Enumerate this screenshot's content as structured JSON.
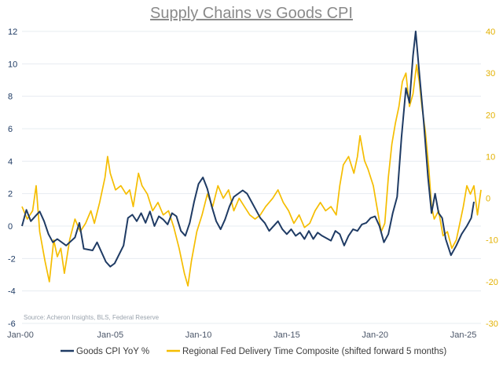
{
  "chart_data": {
    "type": "line",
    "title": "Supply Chains vs Goods CPI",
    "source": "Source: Acheron Insights, BLS, Federal Reserve",
    "x_ticks": [
      "Jan-00",
      "Jan-05",
      "Jan-10",
      "Jan-15",
      "Jan-20",
      "Jan-25"
    ],
    "x_range": [
      2000.0,
      2026.0
    ],
    "y_left": {
      "min": -6,
      "max": 12,
      "ticks": [
        -6,
        -4,
        -2,
        0,
        2,
        4,
        6,
        8,
        10,
        12
      ]
    },
    "y_right": {
      "min": -30,
      "max": 40,
      "ticks": [
        -30,
        -20,
        -10,
        0,
        10,
        20,
        30,
        40
      ]
    },
    "series": [
      {
        "name": "Goods CPI YoY %",
        "axis": "left",
        "color": "#1f3b64",
        "points": [
          [
            2000.0,
            0.0
          ],
          [
            2000.25,
            1.0
          ],
          [
            2000.5,
            0.3
          ],
          [
            2000.75,
            0.6
          ],
          [
            2001.0,
            0.9
          ],
          [
            2001.25,
            0.3
          ],
          [
            2001.5,
            -0.5
          ],
          [
            2001.75,
            -1.0
          ],
          [
            2002.0,
            -0.8
          ],
          [
            2002.5,
            -1.2
          ],
          [
            2003.0,
            -0.7
          ],
          [
            2003.25,
            0.2
          ],
          [
            2003.5,
            -1.4
          ],
          [
            2004.0,
            -1.5
          ],
          [
            2004.25,
            -1.0
          ],
          [
            2004.75,
            -2.2
          ],
          [
            2005.0,
            -2.5
          ],
          [
            2005.25,
            -2.3
          ],
          [
            2005.75,
            -1.2
          ],
          [
            2006.0,
            0.5
          ],
          [
            2006.25,
            0.7
          ],
          [
            2006.5,
            0.3
          ],
          [
            2006.75,
            0.8
          ],
          [
            2007.0,
            0.2
          ],
          [
            2007.25,
            0.9
          ],
          [
            2007.5,
            0.0
          ],
          [
            2007.75,
            0.6
          ],
          [
            2008.0,
            0.4
          ],
          [
            2008.25,
            0.1
          ],
          [
            2008.5,
            0.8
          ],
          [
            2008.75,
            0.6
          ],
          [
            2009.0,
            -0.3
          ],
          [
            2009.25,
            -0.6
          ],
          [
            2009.5,
            0.2
          ],
          [
            2009.75,
            1.5
          ],
          [
            2010.0,
            2.6
          ],
          [
            2010.25,
            3.0
          ],
          [
            2010.5,
            2.3
          ],
          [
            2010.75,
            1.2
          ],
          [
            2011.0,
            0.3
          ],
          [
            2011.25,
            -0.2
          ],
          [
            2011.5,
            0.4
          ],
          [
            2011.75,
            1.2
          ],
          [
            2012.0,
            1.8
          ],
          [
            2012.5,
            2.2
          ],
          [
            2012.75,
            2.0
          ],
          [
            2013.0,
            1.5
          ],
          [
            2013.25,
            1.0
          ],
          [
            2013.5,
            0.5
          ],
          [
            2013.75,
            0.2
          ],
          [
            2014.0,
            -0.3
          ],
          [
            2014.5,
            0.3
          ],
          [
            2014.75,
            -0.2
          ],
          [
            2015.0,
            -0.5
          ],
          [
            2015.25,
            -0.2
          ],
          [
            2015.5,
            -0.6
          ],
          [
            2015.75,
            -0.4
          ],
          [
            2016.0,
            -0.8
          ],
          [
            2016.25,
            -0.3
          ],
          [
            2016.5,
            -0.8
          ],
          [
            2016.75,
            -0.4
          ],
          [
            2017.0,
            -0.6
          ],
          [
            2017.5,
            -0.9
          ],
          [
            2017.75,
            -0.3
          ],
          [
            2018.0,
            -0.5
          ],
          [
            2018.25,
            -1.2
          ],
          [
            2018.5,
            -0.6
          ],
          [
            2018.75,
            -0.2
          ],
          [
            2019.0,
            -0.3
          ],
          [
            2019.25,
            0.1
          ],
          [
            2019.5,
            0.2
          ],
          [
            2019.75,
            0.5
          ],
          [
            2020.0,
            0.6
          ],
          [
            2020.25,
            0.0
          ],
          [
            2020.5,
            -1.0
          ],
          [
            2020.75,
            -0.5
          ],
          [
            2021.0,
            0.8
          ],
          [
            2021.25,
            1.8
          ],
          [
            2021.5,
            5.5
          ],
          [
            2021.75,
            8.5
          ],
          [
            2021.95,
            7.6
          ],
          [
            2022.15,
            10.5
          ],
          [
            2022.3,
            12.0
          ],
          [
            2022.5,
            9.5
          ],
          [
            2022.75,
            6.5
          ],
          [
            2023.0,
            3.0
          ],
          [
            2023.2,
            0.8
          ],
          [
            2023.4,
            2.0
          ],
          [
            2023.6,
            0.8
          ],
          [
            2023.8,
            0.5
          ],
          [
            2024.0,
            -0.8
          ],
          [
            2024.3,
            -1.8
          ],
          [
            2024.6,
            -1.2
          ],
          [
            2024.9,
            -0.5
          ],
          [
            2025.2,
            0.0
          ],
          [
            2025.45,
            0.5
          ],
          [
            2025.6,
            1.5
          ]
        ]
      },
      {
        "name": "Regional Fed Delivery Time Composite (shifted forward 5 months)",
        "axis": "right",
        "color": "#f5bd00",
        "points": [
          [
            2000.0,
            -2.0
          ],
          [
            2000.3,
            -5.0
          ],
          [
            2000.6,
            -3.0
          ],
          [
            2000.8,
            3.0
          ],
          [
            2001.0,
            -8.0
          ],
          [
            2001.3,
            -15.0
          ],
          [
            2001.55,
            -20.0
          ],
          [
            2001.8,
            -10.0
          ],
          [
            2002.0,
            -14.0
          ],
          [
            2002.2,
            -12.0
          ],
          [
            2002.4,
            -18.0
          ],
          [
            2002.7,
            -10.0
          ],
          [
            2003.0,
            -5.0
          ],
          [
            2003.3,
            -8.0
          ],
          [
            2003.6,
            -6.0
          ],
          [
            2003.9,
            -3.0
          ],
          [
            2004.1,
            -6.0
          ],
          [
            2004.4,
            -1.0
          ],
          [
            2004.7,
            5.0
          ],
          [
            2004.85,
            10.0
          ],
          [
            2005.0,
            6.0
          ],
          [
            2005.3,
            2.0
          ],
          [
            2005.6,
            3.0
          ],
          [
            2005.9,
            1.0
          ],
          [
            2006.1,
            2.0
          ],
          [
            2006.3,
            -2.0
          ],
          [
            2006.6,
            6.0
          ],
          [
            2006.8,
            3.0
          ],
          [
            2007.1,
            1.0
          ],
          [
            2007.4,
            -3.0
          ],
          [
            2007.7,
            -1.0
          ],
          [
            2008.0,
            -4.0
          ],
          [
            2008.3,
            -3.0
          ],
          [
            2008.6,
            -7.0
          ],
          [
            2008.9,
            -12.0
          ],
          [
            2009.2,
            -18.0
          ],
          [
            2009.4,
            -21.0
          ],
          [
            2009.6,
            -15.0
          ],
          [
            2009.9,
            -8.0
          ],
          [
            2010.2,
            -4.0
          ],
          [
            2010.5,
            1.0
          ],
          [
            2010.8,
            -2.0
          ],
          [
            2011.1,
            3.0
          ],
          [
            2011.4,
            0.0
          ],
          [
            2011.7,
            2.0
          ],
          [
            2012.0,
            -3.0
          ],
          [
            2012.3,
            0.0
          ],
          [
            2012.6,
            -2.0
          ],
          [
            2012.9,
            -4.0
          ],
          [
            2013.2,
            -5.0
          ],
          [
            2013.5,
            -4.0
          ],
          [
            2013.8,
            -2.0
          ],
          [
            2014.2,
            0.0
          ],
          [
            2014.5,
            2.0
          ],
          [
            2014.8,
            -1.0
          ],
          [
            2015.1,
            -3.0
          ],
          [
            2015.4,
            -6.0
          ],
          [
            2015.7,
            -4.0
          ],
          [
            2016.0,
            -7.0
          ],
          [
            2016.3,
            -6.0
          ],
          [
            2016.6,
            -3.0
          ],
          [
            2016.9,
            -1.0
          ],
          [
            2017.2,
            -3.0
          ],
          [
            2017.5,
            -2.0
          ],
          [
            2017.8,
            -4.0
          ],
          [
            2018.0,
            3.0
          ],
          [
            2018.2,
            8.0
          ],
          [
            2018.5,
            10.0
          ],
          [
            2018.8,
            6.0
          ],
          [
            2019.0,
            10.0
          ],
          [
            2019.15,
            15.0
          ],
          [
            2019.4,
            9.0
          ],
          [
            2019.6,
            7.0
          ],
          [
            2019.9,
            3.0
          ],
          [
            2020.1,
            -2.0
          ],
          [
            2020.35,
            -8.0
          ],
          [
            2020.55,
            -6.0
          ],
          [
            2020.75,
            5.0
          ],
          [
            2020.95,
            13.0
          ],
          [
            2021.15,
            18.0
          ],
          [
            2021.35,
            22.0
          ],
          [
            2021.55,
            28.0
          ],
          [
            2021.75,
            30.0
          ],
          [
            2021.95,
            22.0
          ],
          [
            2022.15,
            25.0
          ],
          [
            2022.35,
            32.0
          ],
          [
            2022.5,
            28.0
          ],
          [
            2022.65,
            22.0
          ],
          [
            2022.85,
            16.0
          ],
          [
            2023.05,
            7.0
          ],
          [
            2023.2,
            -2.0
          ],
          [
            2023.35,
            -5.0
          ],
          [
            2023.6,
            -3.0
          ],
          [
            2023.85,
            -9.0
          ],
          [
            2024.1,
            -8.0
          ],
          [
            2024.35,
            -12.0
          ],
          [
            2024.6,
            -10.0
          ],
          [
            2024.85,
            -5.0
          ],
          [
            2025.0,
            -2.0
          ],
          [
            2025.2,
            3.0
          ],
          [
            2025.4,
            1.0
          ],
          [
            2025.6,
            3.0
          ],
          [
            2025.8,
            -4.0
          ],
          [
            2026.0,
            2.0
          ]
        ]
      }
    ]
  }
}
